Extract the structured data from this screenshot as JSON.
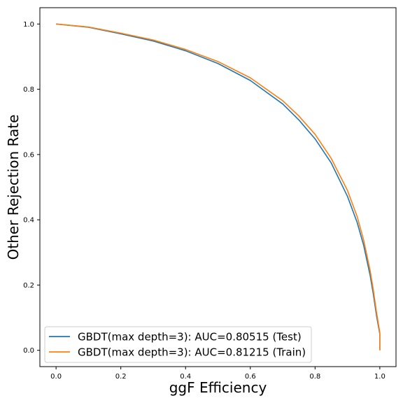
{
  "chart_data": {
    "type": "line",
    "title": "",
    "xlabel": "ggF Efficiency",
    "ylabel": "Other Rejection Rate",
    "xlim": [
      -0.05,
      1.05
    ],
    "ylim": [
      -0.05,
      1.05
    ],
    "xticks": [
      "0.0",
      "0.2",
      "0.4",
      "0.6",
      "0.8",
      "1.0"
    ],
    "yticks": [
      "0.0",
      "0.2",
      "0.4",
      "0.6",
      "0.8",
      "1.0"
    ],
    "grid": false,
    "legend": "lower-left",
    "series": [
      {
        "name": "GBDT(max depth=3): AUC=0.80515 (Test)",
        "color": "#1f77b4",
        "x": [
          0.0,
          0.1,
          0.2,
          0.3,
          0.4,
          0.5,
          0.6,
          0.7,
          0.75,
          0.8,
          0.85,
          0.9,
          0.93,
          0.95,
          0.97,
          0.98,
          0.99,
          1.0,
          1.0
        ],
        "y": [
          1.0,
          0.99,
          0.97,
          0.948,
          0.918,
          0.879,
          0.827,
          0.755,
          0.706,
          0.648,
          0.574,
          0.472,
          0.392,
          0.322,
          0.23,
          0.172,
          0.105,
          0.05,
          0.0
        ]
      },
      {
        "name": "GBDT(max depth=3): AUC=0.81215 (Train)",
        "color": "#ff7f0e",
        "x": [
          0.0,
          0.1,
          0.2,
          0.3,
          0.4,
          0.5,
          0.6,
          0.7,
          0.75,
          0.8,
          0.85,
          0.9,
          0.93,
          0.95,
          0.97,
          0.98,
          0.99,
          1.0,
          1.0
        ],
        "y": [
          1.0,
          0.991,
          0.972,
          0.951,
          0.922,
          0.885,
          0.835,
          0.765,
          0.718,
          0.662,
          0.588,
          0.49,
          0.41,
          0.338,
          0.245,
          0.185,
          0.115,
          0.055,
          0.0
        ]
      }
    ]
  }
}
